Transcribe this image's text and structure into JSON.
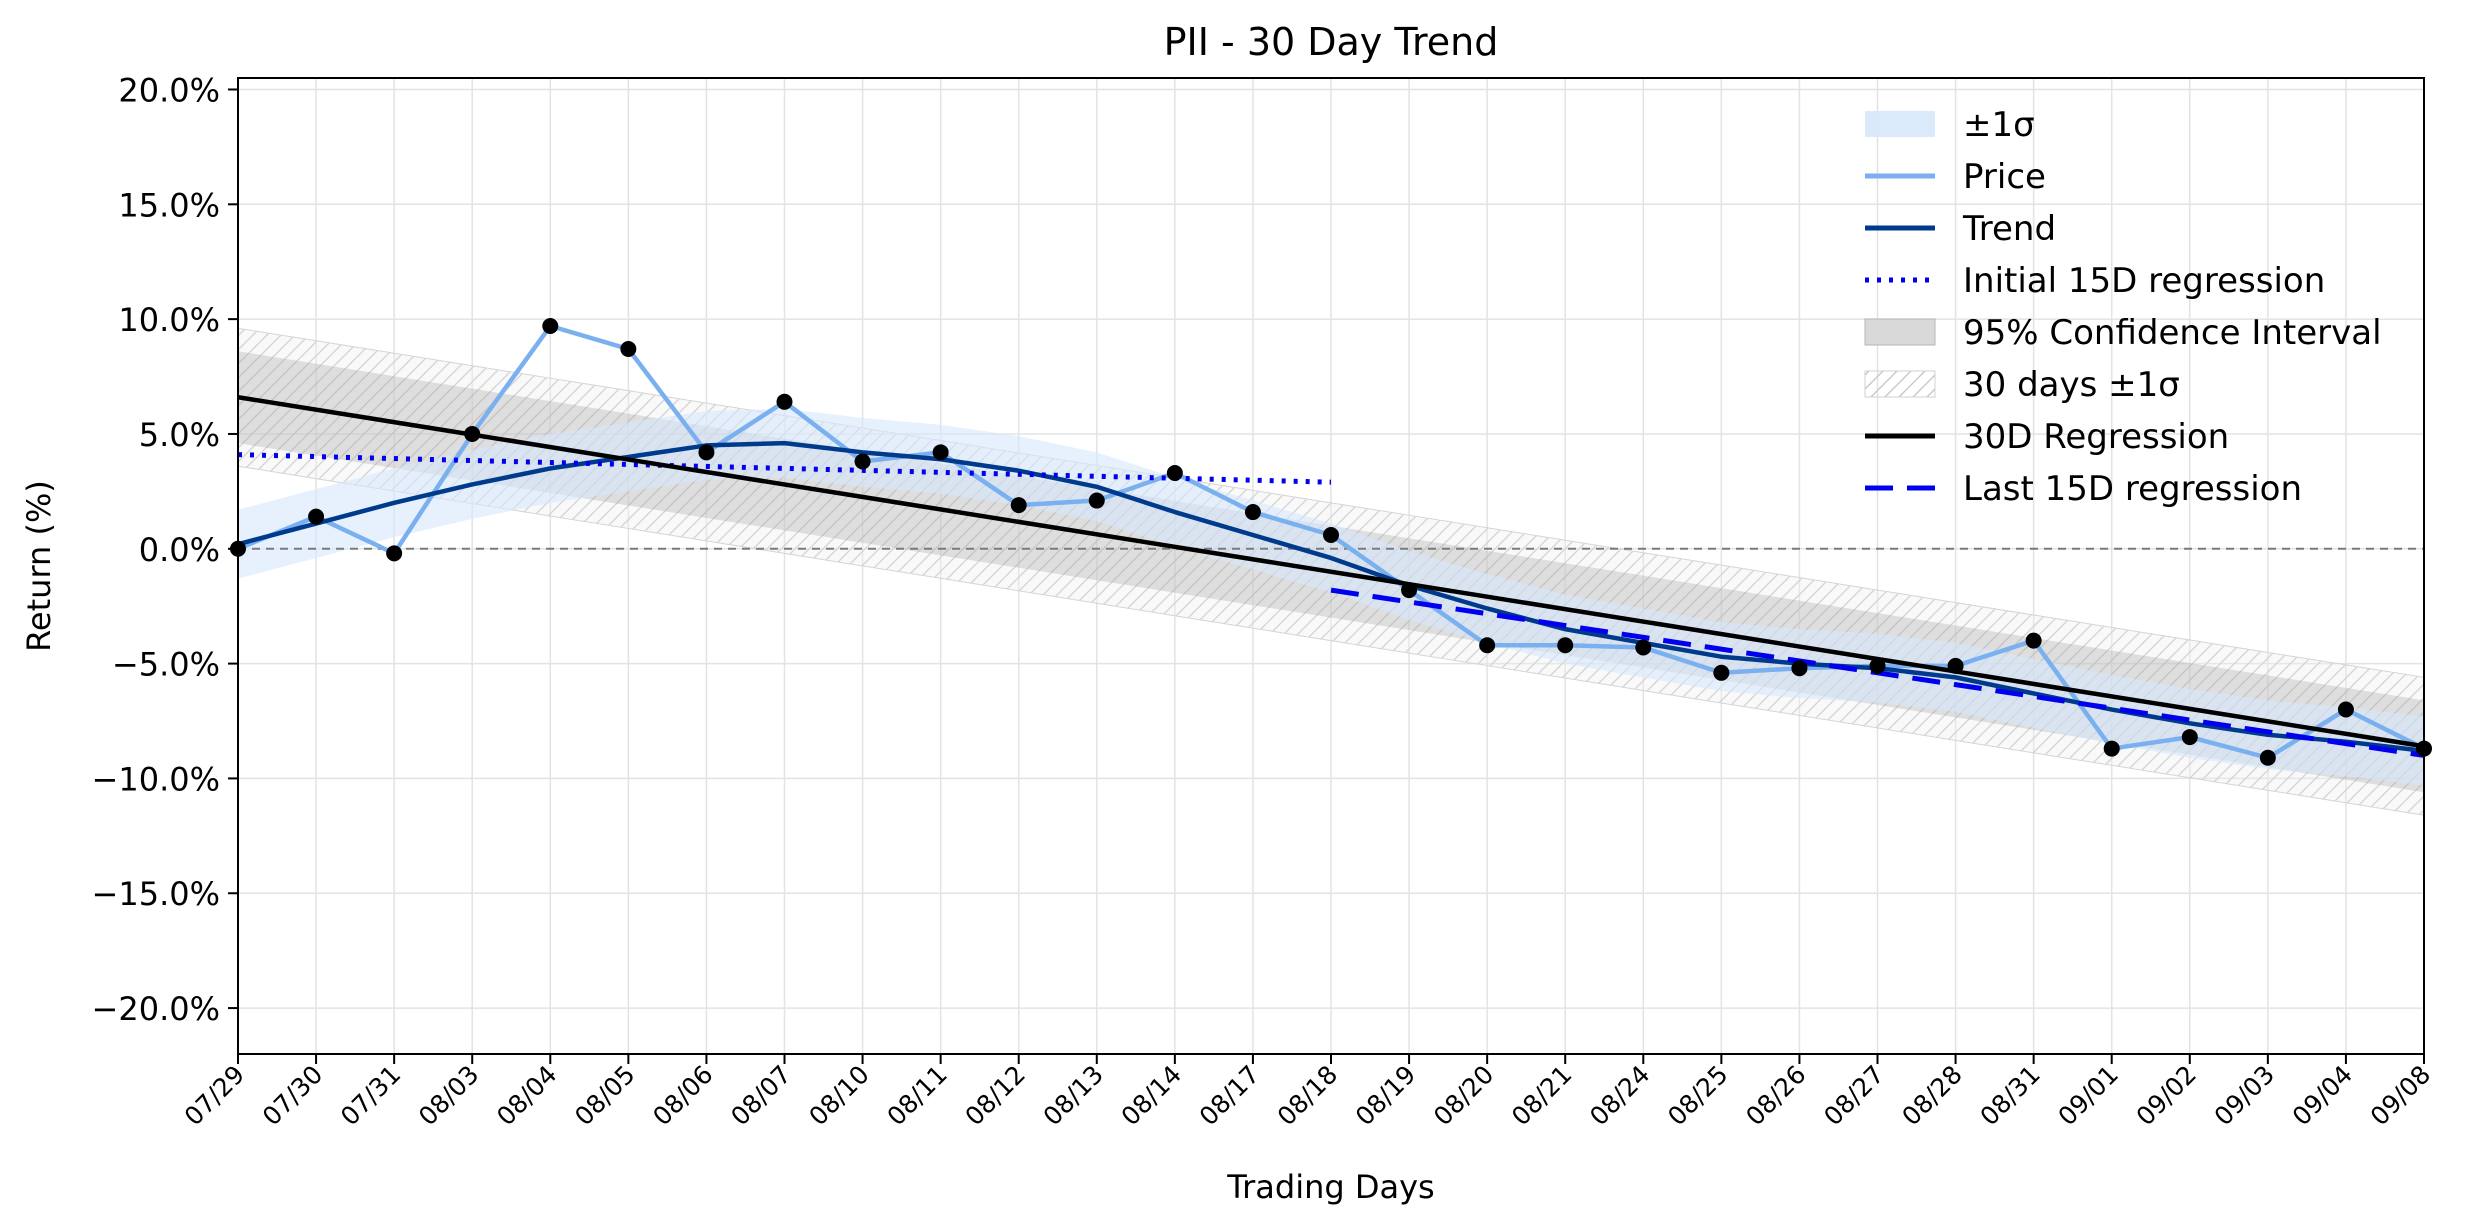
{
  "chart_data": {
    "type": "line",
    "title": "PII - 30 Day Trend",
    "xlabel": "Trading Days",
    "ylabel": "Return (%)",
    "categories": [
      "07/29",
      "07/30",
      "07/31",
      "08/03",
      "08/04",
      "08/05",
      "08/06",
      "08/07",
      "08/10",
      "08/11",
      "08/12",
      "08/13",
      "08/14",
      "08/17",
      "08/18",
      "08/19",
      "08/20",
      "08/21",
      "08/24",
      "08/25",
      "08/26",
      "08/27",
      "08/28",
      "08/31",
      "09/01",
      "09/02",
      "09/03",
      "09/04",
      "09/08"
    ],
    "ylim": [
      -22,
      20.5
    ],
    "yticks": [
      -20,
      -15,
      -10,
      -5,
      0,
      5,
      10,
      15,
      20
    ],
    "ytick_labels": [
      "−20.0%",
      "−15.0%",
      "−10.0%",
      "−5.0%",
      "0.0%",
      "5.0%",
      "10.0%",
      "15.0%",
      "20.0%"
    ],
    "grid": true,
    "legend_position": "top-right",
    "series": [
      {
        "name": "Price",
        "color": "#7ab0f0",
        "values": [
          0.0,
          1.4,
          -0.2,
          5.0,
          9.7,
          8.7,
          4.2,
          6.4,
          3.8,
          4.2,
          1.9,
          2.1,
          3.3,
          1.6,
          0.6,
          -1.8,
          -4.2,
          -4.2,
          -4.3,
          -5.4,
          -5.2,
          -5.1,
          -5.1,
          -4.0,
          -8.7,
          -8.2,
          -9.1,
          -7.0,
          -8.7
        ]
      },
      {
        "name": "Trend",
        "color": "#003a8c",
        "values": [
          0.2,
          1.1,
          2.0,
          2.8,
          3.5,
          4.0,
          4.5,
          4.6,
          4.2,
          3.9,
          3.4,
          2.7,
          1.6,
          0.6,
          -0.4,
          -1.6,
          -2.6,
          -3.5,
          -4.1,
          -4.7,
          -5.0,
          -5.2,
          -5.6,
          -6.3,
          -7.0,
          -7.6,
          -8.1,
          -8.4,
          -8.8
        ]
      }
    ],
    "sigma_band": {
      "name": "±1σ",
      "color": "#d6e8fb",
      "width": 1.5,
      "center": [
        0.2,
        1.1,
        2.0,
        2.8,
        3.5,
        4.0,
        4.5,
        4.6,
        4.2,
        3.9,
        3.4,
        2.7,
        1.6,
        0.6,
        -0.4,
        -1.6,
        -2.6,
        -3.5,
        -4.1,
        -4.7,
        -5.0,
        -5.2,
        -5.6,
        -6.3,
        -7.0,
        -7.6,
        -8.1,
        -8.4,
        -8.8
      ]
    },
    "initial_15d_regression": {
      "name": "Initial 15D regression",
      "color": "#0000ee",
      "x_range": [
        0,
        14
      ],
      "y_range": [
        4.1,
        2.9
      ]
    },
    "last_15d_regression": {
      "name": "Last 15D regression",
      "color": "#0000ee",
      "x_range": [
        14,
        28
      ],
      "y_range": [
        -1.8,
        -9.0
      ]
    },
    "regression_30d": {
      "name": "30D Regression",
      "color": "#000000",
      "y_start": 6.6,
      "y_end": -8.6
    },
    "confidence_interval": {
      "name": "95% Confidence Interval",
      "color": "#9a9a9a",
      "width": 2.0
    },
    "days_sigma_band": {
      "name": "30 days ±1σ",
      "color": "#bbbbbb",
      "width": 3.0
    },
    "zero_line": true
  }
}
